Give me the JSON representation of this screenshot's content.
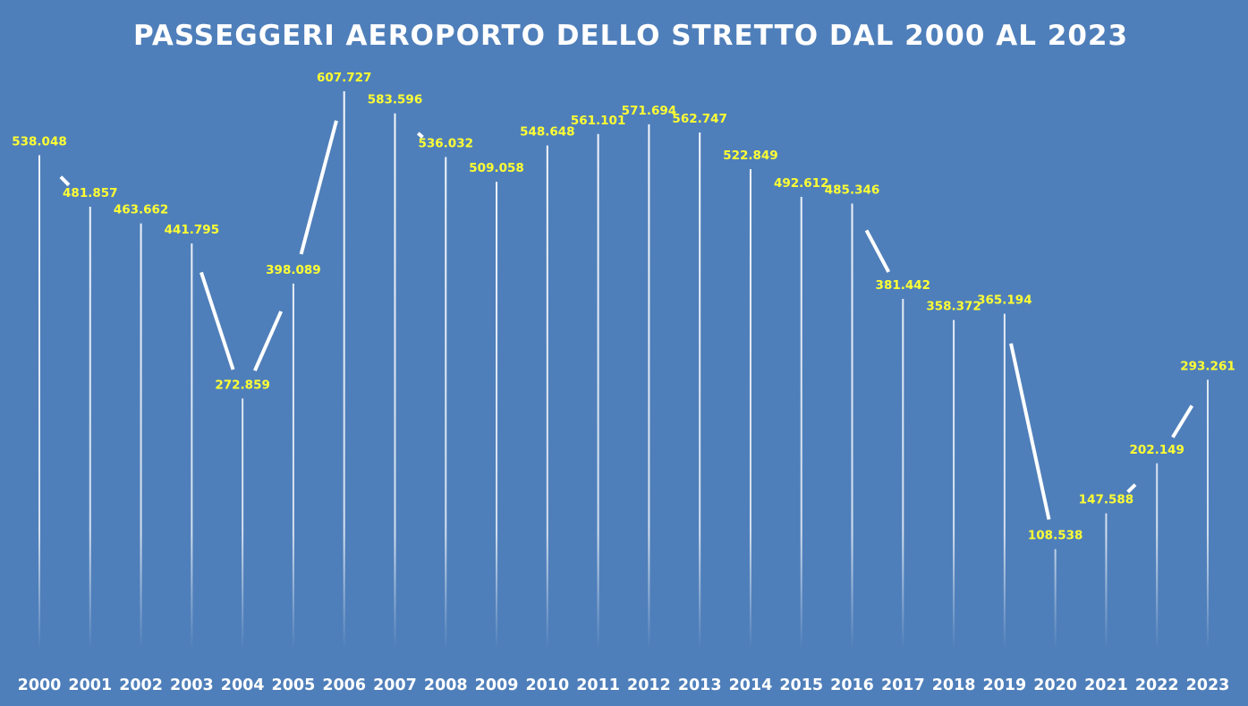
{
  "chart_data": {
    "type": "line",
    "title": "PASSEGGERI AEROPORTO DELLO STRETTO DAL 2000 AL 2023",
    "xlabel": "",
    "ylabel": "",
    "categories": [
      "2000",
      "2001",
      "2002",
      "2003",
      "2004",
      "2005",
      "2006",
      "2007",
      "2008",
      "2009",
      "2010",
      "2011",
      "2012",
      "2013",
      "2014",
      "2015",
      "2016",
      "2017",
      "2018",
      "2019",
      "2020",
      "2021",
      "2022",
      "2023"
    ],
    "values": [
      538048,
      481857,
      463662,
      441795,
      272859,
      398089,
      607727,
      583596,
      536032,
      509058,
      548648,
      561101,
      571694,
      562747,
      522849,
      492612,
      485346,
      381442,
      358372,
      365194,
      108538,
      147588,
      202149,
      293261
    ],
    "data_labels": [
      "538.048",
      "481.857",
      "463.662",
      "441.795",
      "272.859",
      "398.089",
      "607.727",
      "583.596",
      "536.032",
      "509.058",
      "548.648",
      "561.101",
      "571.694",
      "562.747",
      "522.849",
      "492.612",
      "485.346",
      "381.442",
      "358.372",
      "365.194",
      "108.538",
      "147.588",
      "202.149",
      "293.261"
    ],
    "ylim": [
      0,
      640000
    ],
    "grid": false,
    "legend": "none",
    "colors": {
      "background": "#4f7fba",
      "line": "#ffffff",
      "drop_lines": "#ffffff",
      "data_labels": "#ffff33",
      "text": "#ffffff"
    }
  }
}
